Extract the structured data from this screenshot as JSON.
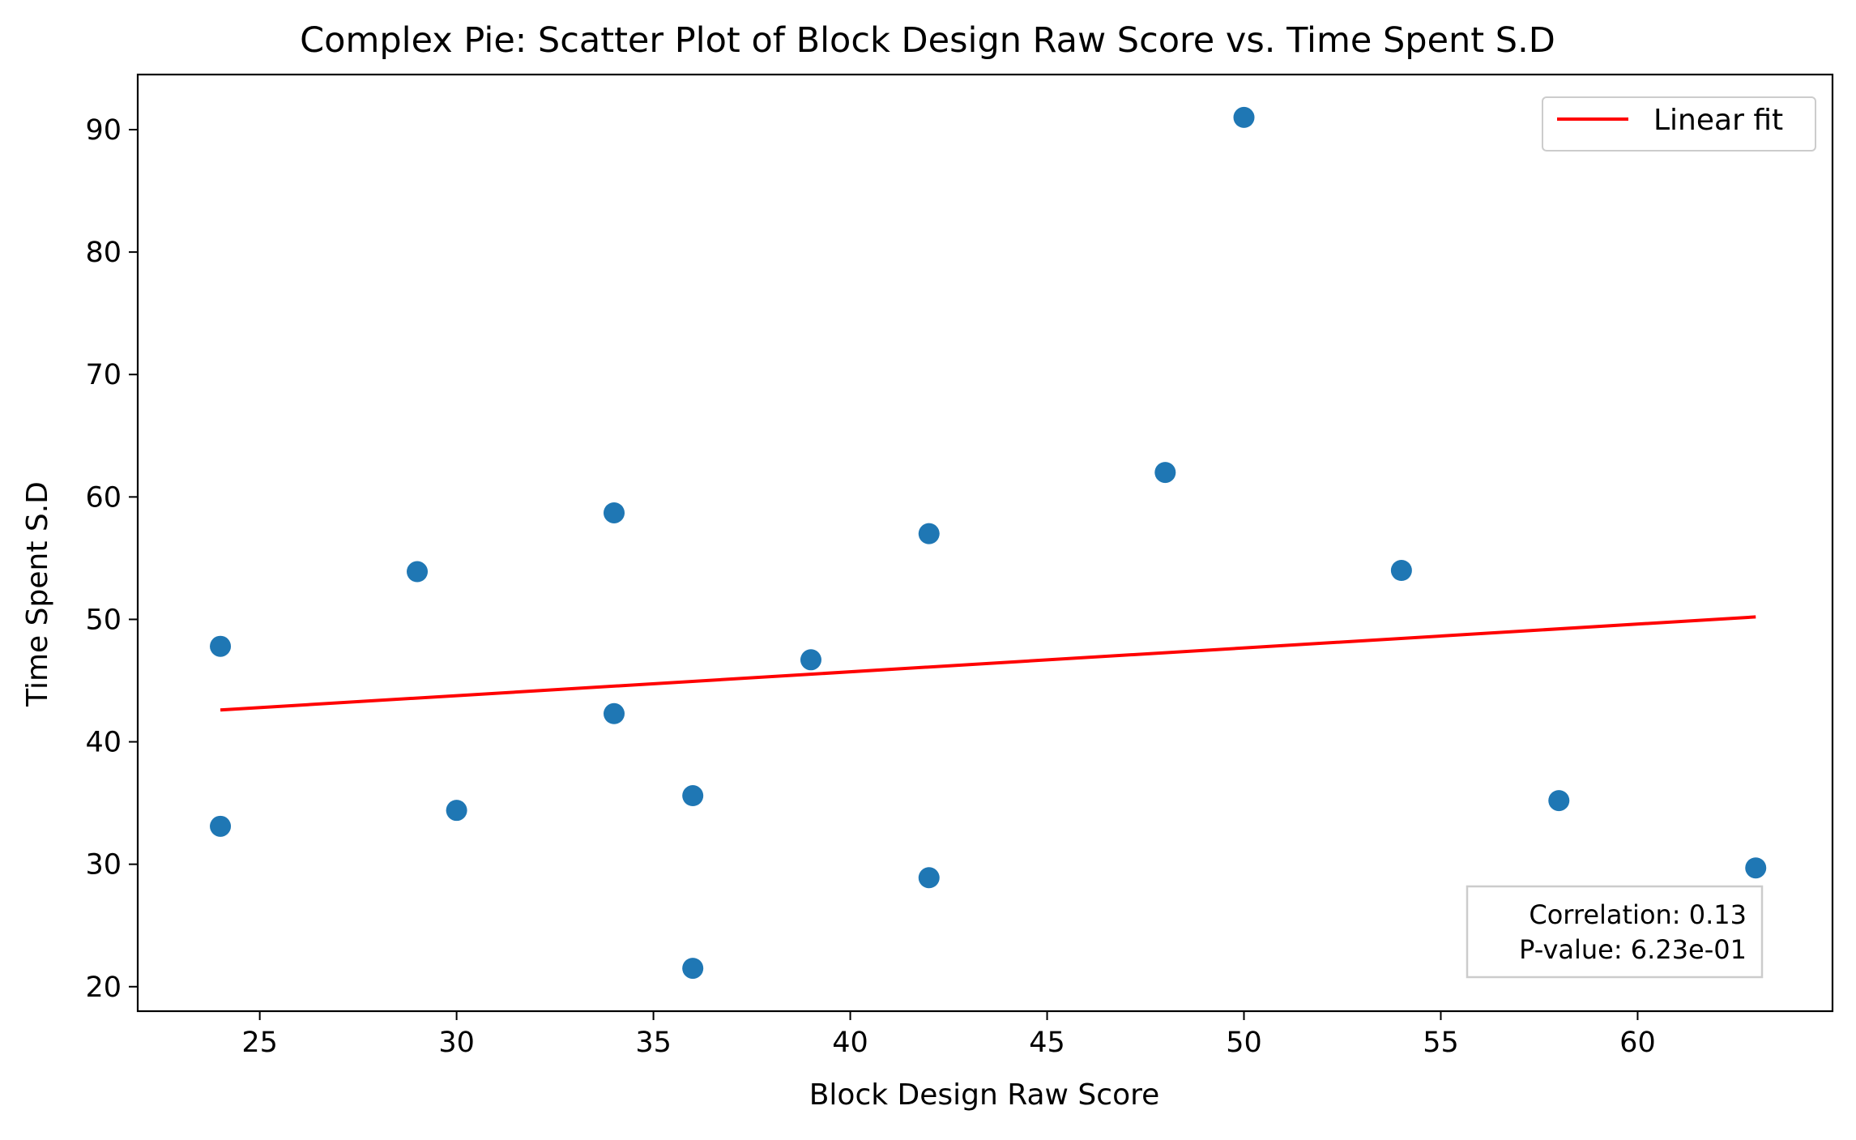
{
  "chart_data": {
    "type": "scatter",
    "title": "Complex Pie: Scatter Plot of Block Design Raw Score vs. Time Spent S.D",
    "xlabel": "Block Design Raw Score",
    "ylabel": "Time Spent S.D",
    "xlim": [
      21.9,
      64.95
    ],
    "ylim": [
      18.0,
      94.5
    ],
    "xticks": [
      25,
      30,
      35,
      40,
      45,
      50,
      55,
      60
    ],
    "yticks": [
      20,
      30,
      40,
      50,
      60,
      70,
      80,
      90
    ],
    "grid": false,
    "points": [
      {
        "x": 24,
        "y": 47.8
      },
      {
        "x": 24,
        "y": 33.1
      },
      {
        "x": 29,
        "y": 53.9
      },
      {
        "x": 30,
        "y": 34.4
      },
      {
        "x": 34,
        "y": 58.7
      },
      {
        "x": 34,
        "y": 42.3
      },
      {
        "x": 36,
        "y": 35.6
      },
      {
        "x": 36,
        "y": 21.5
      },
      {
        "x": 39,
        "y": 46.7
      },
      {
        "x": 42,
        "y": 57.0
      },
      {
        "x": 42,
        "y": 28.9
      },
      {
        "x": 48,
        "y": 62.0
      },
      {
        "x": 50,
        "y": 91.0
      },
      {
        "x": 54,
        "y": 54.0
      },
      {
        "x": 58,
        "y": 35.2
      },
      {
        "x": 63,
        "y": 29.7
      }
    ],
    "point_color": "#1f77b4",
    "fit_line": {
      "name": "Linear fit",
      "x": [
        24,
        63
      ],
      "y": [
        42.6,
        50.2
      ],
      "color": "#ff0000"
    },
    "legend": {
      "placement": "upper-right",
      "entries": [
        "Linear fit"
      ]
    },
    "annotation": {
      "placement": "lower-right",
      "lines": [
        "Correlation: 0.13",
        "P-value: 6.23e-01"
      ]
    }
  }
}
